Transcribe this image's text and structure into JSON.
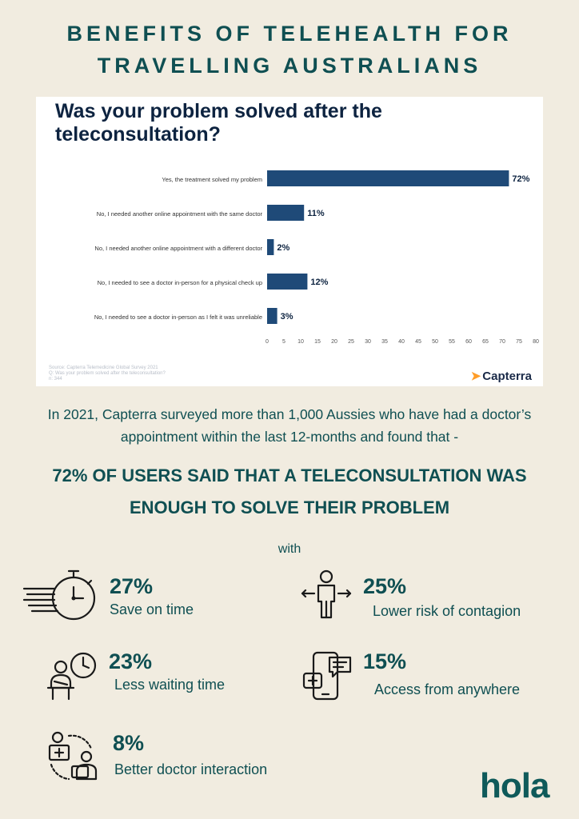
{
  "page": {
    "title_line1": "BENEFITS OF TELEHEALTH FOR",
    "title_line2": "TRAVELLING AUSTRALIANS",
    "intro": "In 2021, Capterra surveyed more than 1,000 Aussies who have had a doctor’s appointment within the last 12-months and found that -",
    "headline_line1": "72% of users said that a teleconsultation was",
    "headline_line2": "enough to solve their problem",
    "with": "with",
    "logo": "hola"
  },
  "chart_data": {
    "type": "bar",
    "orientation": "horizontal",
    "title": "Was your problem solved after the teleconsultation?",
    "categories": [
      "Yes, the treatment solved my problem",
      "No, I needed another online appointment with the same doctor",
      "No, I needed another online appointment with a different doctor",
      "No, I needed to see a doctor in-person for a physical check up",
      "No, I needed to see a doctor in-person as I felt it was unreliable"
    ],
    "values": [
      72,
      11,
      2,
      12,
      3
    ],
    "value_labels": [
      "72%",
      "11%",
      "2%",
      "12%",
      "3%"
    ],
    "xlim": [
      0,
      80
    ],
    "xticks": [
      "0",
      "5",
      "10",
      "15",
      "20",
      "25",
      "30",
      "35",
      "40",
      "45",
      "50",
      "55",
      "60",
      "65",
      "70",
      "75",
      "80"
    ],
    "bar_color": "#1f4a78",
    "grid": false,
    "source_lines": [
      "Source: Capterra Telemedicine Global Survey 2021",
      "Q: Was your problem solved after the teleconsultation?",
      "n: 344"
    ],
    "brand": "Capterra"
  },
  "stats": [
    {
      "pct": "27%",
      "label": "Save on time",
      "icon": "stopwatch-icon"
    },
    {
      "pct": "25%",
      "label": "Lower risk of contagion",
      "icon": "distancing-person-icon"
    },
    {
      "pct": "23%",
      "label": "Less waiting time",
      "icon": "waiting-clock-icon"
    },
    {
      "pct": "15%",
      "label": "Access from anywhere",
      "icon": "phone-chat-icon"
    },
    {
      "pct": "8%",
      "label": "Better doctor interaction",
      "icon": "doctor-patient-icon"
    }
  ],
  "colors": {
    "background": "#f1ece0",
    "teal": "#0f4f52",
    "chart_title": "#0d2340",
    "capterra_orange": "#ff9d28"
  }
}
